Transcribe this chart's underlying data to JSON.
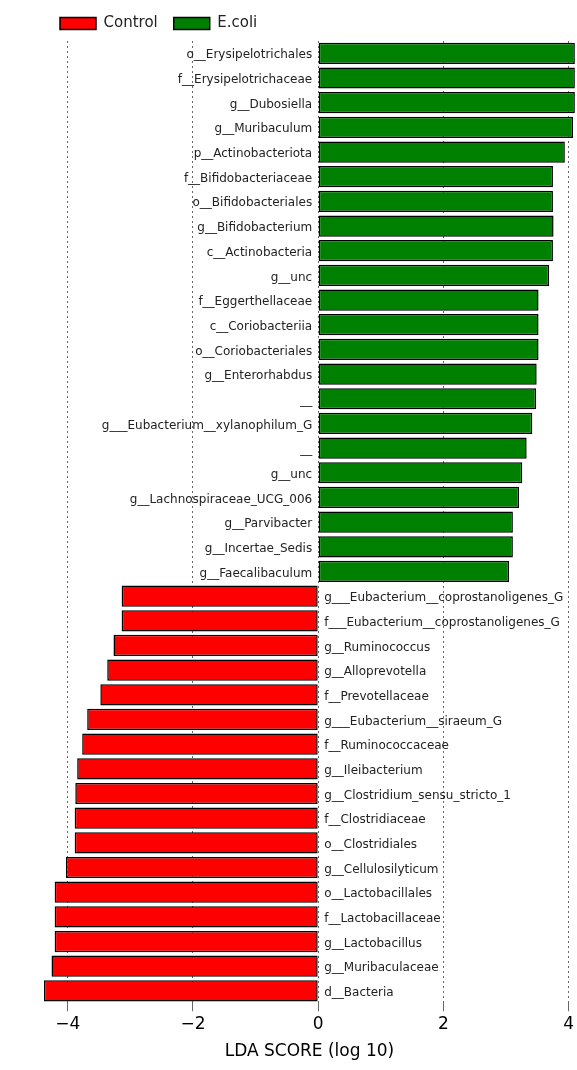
{
  "chart_data": {
    "type": "bar",
    "orientation": "horizontal",
    "xlabel": "LDA SCORE (log 10)",
    "categories": [
      "o__Erysipelotrichales",
      "f__Erysipelotrichaceae",
      "g__Dubosiella",
      "g__Muribaculum",
      "p__Actinobacteriota",
      "f__Bifidobacteriaceae",
      "o__Bifidobacteriales",
      "g__Bifidobacterium",
      "c__Actinobacteria",
      "g__unc",
      "f__Eggerthellaceae",
      "c__Coriobacteriia",
      "o__Coriobacteriales",
      "g__Enterorhabdus",
      "__",
      "g___Eubacterium__xylanophilum_G",
      "__",
      "g__unc",
      "g__Lachnospiraceae_UCG_006",
      "g__Parvibacter",
      "g__Incertae_Sedis",
      "g__Faecalibaculum",
      "g___Eubacterium__coprostanoligenes_G",
      "f___Eubacterium__coprostanoligenes_G",
      "g__Ruminococcus",
      "g__Alloprevotella",
      "f__Prevotellaceae",
      "g___Eubacterium__siraeum_G",
      "f__Ruminococcaceae",
      "g__Ileibacterium",
      "g__Clostridium_sensu_stricto_1",
      "f__Clostridiaceae",
      "o__Clostridiales",
      "g__Cellulosilyticum",
      "o__Lactobacillales",
      "f__Lactobacillaceae",
      "g__Lactobacillus",
      "g__Muribaculaceae",
      "d__Bacteria"
    ],
    "series": [
      {
        "name": "Control",
        "color": "#ff0000",
        "values": [
          null,
          null,
          null,
          null,
          null,
          null,
          null,
          null,
          null,
          null,
          null,
          null,
          null,
          null,
          null,
          null,
          null,
          null,
          null,
          null,
          null,
          null,
          -3.14,
          -3.14,
          -3.27,
          -3.37,
          -3.48,
          -3.69,
          -3.77,
          -3.85,
          -3.88,
          -3.89,
          -3.89,
          -4.03,
          -4.21,
          -4.21,
          -4.21,
          -4.26,
          -4.38
        ]
      },
      {
        "name": "E.coli",
        "color": "#008000",
        "values": [
          4.1,
          4.1,
          4.1,
          4.07,
          3.94,
          3.75,
          3.75,
          3.76,
          3.75,
          3.69,
          3.52,
          3.52,
          3.52,
          3.49,
          3.48,
          3.42,
          3.33,
          3.26,
          3.21,
          3.11,
          3.11,
          3.05,
          null,
          null,
          null,
          null,
          null,
          null,
          null,
          null,
          null,
          null,
          null,
          null,
          null,
          null,
          null,
          null,
          null
        ]
      }
    ],
    "xlim": [
      -4.38,
      4.1
    ],
    "xticks": [
      -4,
      -2,
      0,
      2,
      4
    ],
    "grid": "x",
    "legend": "top left"
  }
}
